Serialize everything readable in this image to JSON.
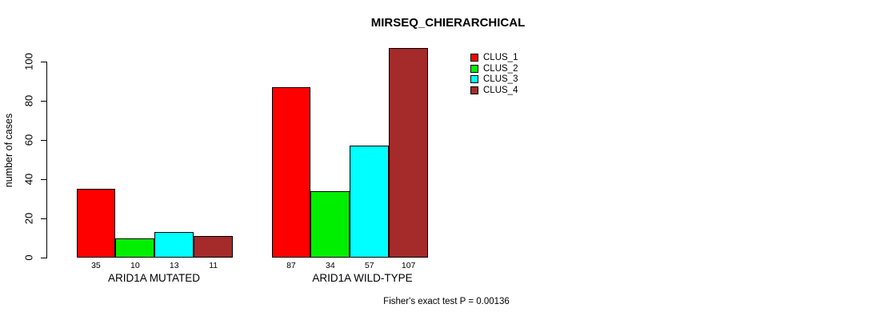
{
  "chart_data": {
    "type": "bar",
    "title": "MIRSEQ_CHIERARCHICAL",
    "ylabel": "number of cases",
    "xlabel": "",
    "categories": [
      "ARID1A MUTATED",
      "ARID1A WILD-TYPE"
    ],
    "series": [
      {
        "name": "CLUS_1",
        "color": "#FF0000",
        "values": [
          35,
          87
        ]
      },
      {
        "name": "CLUS_2",
        "color": "#00EE00",
        "values": [
          10,
          34
        ]
      },
      {
        "name": "CLUS_3",
        "color": "#00FFFF",
        "values": [
          13,
          57
        ]
      },
      {
        "name": "CLUS_4",
        "color": "#A52A2A",
        "values": [
          11,
          107
        ]
      }
    ],
    "ylim": [
      0,
      100
    ],
    "yticks": [
      0,
      20,
      40,
      60,
      80,
      100
    ],
    "grid": false,
    "bar_borders": "#000000",
    "legend_position": "top-right",
    "annotation": "Fisher's exact test P = 0.00136",
    "axis_color": "#000000",
    "text_color": "#000000",
    "background_color": "#FFFFFF"
  }
}
